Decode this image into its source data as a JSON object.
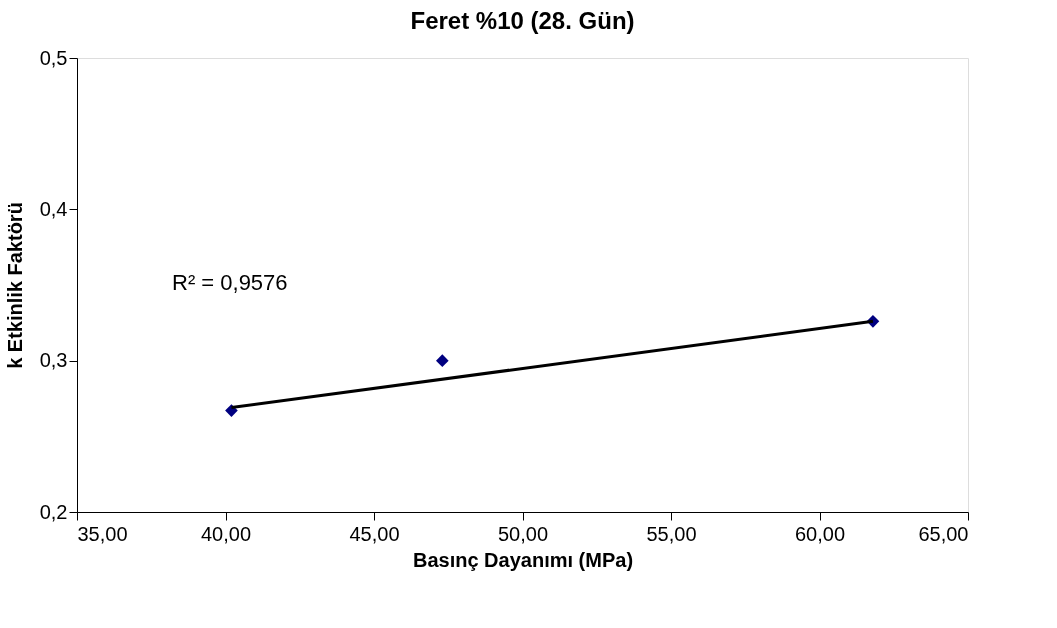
{
  "chart_data": {
    "type": "scatter",
    "title": "Feret %10 (28. Gün)",
    "xlabel": "Basınç Dayanımı (MPa)",
    "ylabel": "k Etkinlik Faktörü",
    "x": [
      40.2,
      47.3,
      61.8
    ],
    "series": [
      {
        "color": "#000080",
        "marker": "diamond",
        "values": [
          0.267,
          0.3,
          0.326
        ]
      },
      {
        "type": "line",
        "color": "#000000",
        "marker": "none",
        "x": [
          40.2,
          61.8
        ],
        "values": [
          0.269,
          0.326
        ]
      }
    ],
    "xlim": [
      35,
      65
    ],
    "ylim": [
      0.2,
      0.5
    ],
    "xticks": [
      {
        "value": 35,
        "label": "35,00"
      },
      {
        "value": 40,
        "label": "40,00"
      },
      {
        "value": 45,
        "label": "45,00"
      },
      {
        "value": 50,
        "label": "50,00"
      },
      {
        "value": 55,
        "label": "55,00"
      },
      {
        "value": 60,
        "label": "60,00"
      },
      {
        "value": 65,
        "label": "65,00"
      }
    ],
    "yticks": [
      {
        "value": 0.2,
        "label": "0,2"
      },
      {
        "value": 0.3,
        "label": "0,3"
      },
      {
        "value": 0.4,
        "label": "0,4"
      },
      {
        "value": 0.5,
        "label": "0,5"
      }
    ],
    "annotations": [
      "R² = 0,9576"
    ],
    "grid": false
  }
}
